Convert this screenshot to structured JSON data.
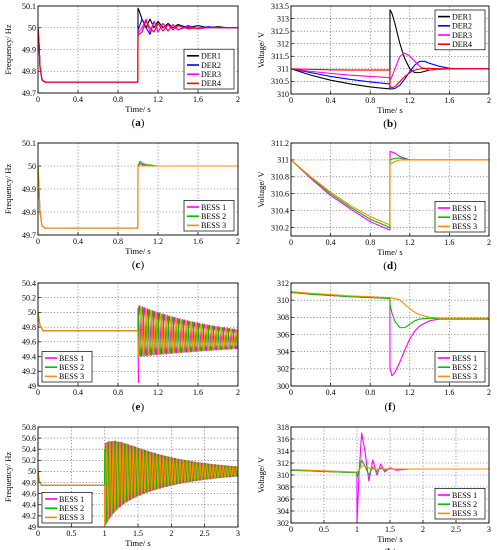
{
  "chart_data": [
    {
      "type": "line",
      "panel_label": "(a)",
      "xlabel": "Time/ s",
      "ylabel": "Frequency/ Hz",
      "xlim": [
        0,
        2
      ],
      "ylim": [
        49.7,
        50.1
      ],
      "xticks": [
        "0",
        "0.4",
        "0.8",
        "1.2",
        "1.6",
        "2"
      ],
      "yticks": [
        "49.7",
        "49.8",
        "49.9",
        "50",
        "50.1"
      ],
      "grid": true,
      "legend_position": "bottom-right",
      "x": [
        0,
        0.01,
        0.02,
        0.04,
        0.07,
        0.1,
        0.3,
        0.6,
        0.999,
        1.0,
        1.01,
        1.04,
        1.08,
        1.12,
        1.16,
        1.2,
        1.25,
        1.3,
        1.35,
        1.4,
        1.5,
        1.6,
        1.7,
        1.8,
        1.9,
        2
      ],
      "series": [
        {
          "name": "DER1",
          "color": "#000000",
          "values": [
            50.0,
            49.93,
            49.82,
            49.76,
            49.75,
            49.75,
            49.75,
            49.75,
            49.75,
            50.09,
            50.08,
            50.04,
            50.0,
            50.04,
            50.0,
            50.03,
            50.0,
            50.02,
            50.0,
            50.015,
            50.0,
            50.01,
            50.0,
            50.005,
            50.0,
            50.0
          ]
        },
        {
          "name": "DER2",
          "color": "#0000ff",
          "values": [
            50.0,
            49.93,
            49.82,
            49.76,
            49.75,
            49.75,
            49.75,
            49.75,
            49.75,
            49.99,
            50.0,
            50.04,
            50.0,
            49.97,
            50.03,
            49.98,
            50.02,
            49.985,
            50.015,
            49.99,
            50.01,
            49.995,
            50.005,
            50.0,
            50.0,
            50.0
          ]
        },
        {
          "name": "DER3",
          "color": "#ff00ff",
          "values": [
            50.0,
            49.93,
            49.82,
            49.76,
            49.75,
            49.75,
            49.75,
            49.75,
            49.75,
            49.97,
            49.98,
            50.0,
            50.04,
            49.98,
            50.03,
            49.98,
            50.02,
            49.985,
            50.015,
            49.99,
            50.005,
            49.995,
            50.0,
            50.0,
            50.0,
            50.0
          ]
        },
        {
          "name": "DER4",
          "color": "#ff0000",
          "values": [
            50.0,
            49.93,
            49.82,
            49.76,
            49.75,
            49.75,
            49.75,
            49.75,
            49.75,
            49.96,
            49.97,
            49.98,
            50.03,
            50.0,
            49.98,
            50.02,
            49.985,
            50.015,
            49.99,
            50.01,
            49.995,
            50.0,
            50.0,
            50.0,
            50.0,
            50.0
          ]
        }
      ]
    },
    {
      "type": "line",
      "panel_label": "(b)",
      "xlabel": "Time/ s",
      "ylabel": "Voltage/ V",
      "xlim": [
        0,
        2
      ],
      "ylim": [
        310,
        313.5
      ],
      "xticks": [
        "0",
        "0.4",
        "0.8",
        "1.2",
        "1.6",
        "2"
      ],
      "yticks": [
        "310",
        "310.5",
        "311",
        "311.5",
        "312",
        "312.5",
        "313",
        "313.5"
      ],
      "grid": true,
      "legend_position": "top-right",
      "x": [
        0,
        0.2,
        0.4,
        0.6,
        0.8,
        0.999,
        1.0,
        1.02,
        1.05,
        1.1,
        1.15,
        1.2,
        1.25,
        1.3,
        1.35,
        1.4,
        1.5,
        1.6,
        1.7,
        1.8,
        2
      ],
      "series": [
        {
          "name": "DER1",
          "color": "#000000",
          "values": [
            311.0,
            310.75,
            310.55,
            310.4,
            310.28,
            310.2,
            313.35,
            313.2,
            312.8,
            312.0,
            311.4,
            311.0,
            310.85,
            310.85,
            310.9,
            310.95,
            311.0,
            311.0,
            311.0,
            311.0,
            311.0
          ]
        },
        {
          "name": "DER2",
          "color": "#0000ff",
          "values": [
            311.0,
            310.85,
            310.7,
            310.58,
            310.48,
            310.4,
            310.2,
            310.2,
            310.22,
            310.35,
            310.6,
            310.9,
            311.15,
            311.3,
            311.3,
            311.22,
            311.1,
            311.02,
            311.0,
            311.0,
            311.0
          ]
        },
        {
          "name": "DER3",
          "color": "#ff00ff",
          "values": [
            311.0,
            310.9,
            310.82,
            310.75,
            310.7,
            310.65,
            310.55,
            310.7,
            311.0,
            311.5,
            311.62,
            311.5,
            311.3,
            311.1,
            311.0,
            310.95,
            310.98,
            311.0,
            311.0,
            311.0,
            311.0
          ]
        },
        {
          "name": "DER4",
          "color": "#ff0000",
          "values": [
            311.0,
            310.98,
            310.96,
            310.95,
            310.95,
            310.95,
            310.3,
            310.25,
            310.3,
            310.5,
            310.7,
            310.85,
            310.95,
            311.0,
            311.02,
            311.02,
            311.0,
            311.0,
            311.0,
            311.0,
            311.0
          ]
        }
      ]
    },
    {
      "type": "line",
      "panel_label": "(c)",
      "xlabel": "Time/ s",
      "ylabel": "Frequency/ Hz",
      "xlim": [
        0,
        2
      ],
      "ylim": [
        49.7,
        50.1
      ],
      "xticks": [
        "0",
        "0.4",
        "0.8",
        "1.2",
        "1.6",
        "2"
      ],
      "yticks": [
        "49.7",
        "49.8",
        "49.9",
        "50",
        "50.1"
      ],
      "grid": true,
      "legend_position": "bottom-right",
      "x": [
        0,
        0.01,
        0.02,
        0.04,
        0.07,
        0.1,
        0.5,
        0.999,
        1.0,
        1.02,
        1.05,
        1.1,
        1.2,
        1.3,
        1.5,
        2
      ],
      "series": [
        {
          "name": "BESS 1",
          "color": "#ff00ff",
          "values": [
            50.0,
            49.9,
            49.8,
            49.74,
            49.73,
            49.73,
            49.73,
            49.73,
            50.0,
            50.01,
            50.005,
            50.0,
            50.0,
            50.0,
            50.0,
            50.0
          ]
        },
        {
          "name": "BESS 2",
          "color": "#00c000",
          "values": [
            50.0,
            49.9,
            49.8,
            49.74,
            49.73,
            49.73,
            49.73,
            49.73,
            50.0,
            50.02,
            50.01,
            50.005,
            50.0,
            50.0,
            50.0,
            50.0
          ]
        },
        {
          "name": "BESS 3",
          "color": "#ff8c00",
          "values": [
            50.0,
            49.9,
            49.8,
            49.74,
            49.73,
            49.73,
            49.73,
            49.73,
            50.0,
            50.0,
            50.0,
            50.0,
            50.0,
            50.0,
            50.0,
            50.0
          ]
        }
      ]
    },
    {
      "type": "line",
      "panel_label": "(d)",
      "xlabel": "Time/ s",
      "ylabel": "Voltage/ V",
      "xlim": [
        0,
        2
      ],
      "ylim": [
        310.1,
        311.2
      ],
      "xticks": [
        "0",
        "0.4",
        "0.8",
        "1.2",
        "1.6",
        "2"
      ],
      "yticks": [
        "310.2",
        "310.4",
        "310.6",
        "310.8",
        "311",
        "311.2"
      ],
      "grid": true,
      "legend_position": "bottom-right",
      "x": [
        0,
        0.2,
        0.4,
        0.6,
        0.8,
        0.999,
        1.0,
        1.05,
        1.1,
        1.15,
        1.2,
        1.3,
        1.5,
        2
      ],
      "series": [
        {
          "name": "BESS 1",
          "color": "#ff00ff",
          "values": [
            311.0,
            310.78,
            310.58,
            310.42,
            310.27,
            310.17,
            311.1,
            311.08,
            311.04,
            311.02,
            311.0,
            311.0,
            311.0,
            311.0
          ]
        },
        {
          "name": "BESS 2",
          "color": "#00c000",
          "values": [
            311.0,
            310.79,
            310.6,
            310.44,
            310.3,
            310.2,
            311.0,
            311.02,
            311.02,
            311.01,
            311.0,
            311.0,
            311.0,
            311.0
          ]
        },
        {
          "name": "BESS 3",
          "color": "#ff8c00",
          "values": [
            311.0,
            310.8,
            310.62,
            310.46,
            310.33,
            310.23,
            310.95,
            310.98,
            311.0,
            311.0,
            311.0,
            311.0,
            311.0,
            311.0
          ]
        }
      ]
    },
    {
      "type": "line",
      "panel_label": "(e)",
      "xlabel": "",
      "ylabel": "",
      "xlim": [
        0,
        2
      ],
      "ylim": [
        49,
        50.4
      ],
      "xticks": [
        "0",
        "0.4",
        "0.8",
        "1.2",
        "1.6",
        "2"
      ],
      "yticks": [
        "49",
        "49.2",
        "49.4",
        "49.6",
        "49.8",
        "50",
        "50.2",
        "50.4"
      ],
      "grid": true,
      "legend_position": "bottom-left",
      "oscillation": {
        "start": 1.0,
        "freq_hz": 20,
        "decay_per_s": 1.0,
        "phase_rad": [
          0,
          2.09,
          4.19
        ],
        "center_from": 49.75,
        "center_to": 49.6,
        "center_tau_s": 0.7,
        "amplitude": 0.35
      },
      "series": [
        {
          "name": "BESS 1",
          "color": "#ff00ff",
          "values_until_event": [
            50.0,
            49.75
          ],
          "event_dip": 49.05
        },
        {
          "name": "BESS 2",
          "color": "#00c000",
          "values_until_event": [
            50.0,
            49.75
          ]
        },
        {
          "name": "BESS 3",
          "color": "#ff8c00",
          "values_until_event": [
            50.0,
            49.75
          ]
        }
      ]
    },
    {
      "type": "line",
      "panel_label": "(f)",
      "xlabel": "",
      "ylabel": "",
      "xlim": [
        0,
        2
      ],
      "ylim": [
        300,
        312
      ],
      "xticks": [
        "0",
        "0.4",
        "0.8",
        "1.2",
        "1.6",
        "2"
      ],
      "yticks": [
        "300",
        "302",
        "304",
        "306",
        "308",
        "310",
        "312"
      ],
      "grid": true,
      "legend_position": "bottom-right",
      "x": [
        0,
        0.2,
        0.4,
        0.6,
        0.8,
        0.999,
        1.0,
        1.02,
        1.05,
        1.1,
        1.15,
        1.2,
        1.25,
        1.3,
        1.4,
        1.5,
        1.6,
        1.8,
        2
      ],
      "series": [
        {
          "name": "BESS 1",
          "color": "#ff00ff",
          "values": [
            310.9,
            310.7,
            310.55,
            310.4,
            310.3,
            310.2,
            302.0,
            301.2,
            301.6,
            302.8,
            304.2,
            305.5,
            306.4,
            307.0,
            307.6,
            307.8,
            307.8,
            307.8,
            307.8
          ]
        },
        {
          "name": "BESS 2",
          "color": "#00c000",
          "values": [
            310.9,
            310.7,
            310.55,
            310.4,
            310.3,
            310.2,
            309.5,
            308.5,
            307.5,
            306.8,
            306.8,
            307.2,
            307.6,
            307.8,
            307.9,
            307.8,
            307.8,
            307.8,
            307.8
          ]
        },
        {
          "name": "BESS 3",
          "color": "#ff8c00",
          "values": [
            311.0,
            310.8,
            310.65,
            310.5,
            310.4,
            310.3,
            310.3,
            310.25,
            310.2,
            310.0,
            309.5,
            309.0,
            308.6,
            308.3,
            308.0,
            307.9,
            307.9,
            307.9,
            307.9
          ]
        }
      ]
    },
    {
      "type": "line",
      "panel_label": "(g)",
      "xlabel": "Time/ s",
      "ylabel": "Frequency/ Hz",
      "xlim": [
        0,
        3
      ],
      "ylim": [
        49,
        50.8
      ],
      "xticks": [
        "0",
        "0.5",
        "1",
        "1.5",
        "2",
        "2.5",
        "3"
      ],
      "yticks": [
        "49",
        "49.2",
        "49.4",
        "49.6",
        "49.8",
        "50",
        "50.2",
        "50.4",
        "50.6",
        "50.8"
      ],
      "grid": true,
      "legend_position": "bottom-left",
      "oscillation": {
        "start": 1.0,
        "freq_hz": 20,
        "decay_per_s": 1.1,
        "phase_rad": [
          0,
          2.09,
          4.19
        ],
        "center_from": 49.75,
        "center_to": 50.0,
        "center_tau_s": 0.15,
        "amplitude": 0.75
      },
      "series": [
        {
          "name": "BESS 1",
          "color": "#ff00ff",
          "values_until_event": [
            50.0,
            49.75
          ],
          "event_dip": 49.1
        },
        {
          "name": "BESS 2",
          "color": "#00c000",
          "values_until_event": [
            50.0,
            49.75
          ]
        },
        {
          "name": "BESS 3",
          "color": "#ff8c00",
          "values_until_event": [
            50.0,
            49.75
          ]
        }
      ]
    },
    {
      "type": "line",
      "panel_label": "(h)",
      "xlabel": "Time/ s",
      "ylabel": "Voltage/ V",
      "xlim": [
        0,
        3
      ],
      "ylim": [
        302,
        318
      ],
      "xticks": [
        "0",
        "0.5",
        "1",
        "1.5",
        "2",
        "2.5",
        "3"
      ],
      "yticks": [
        "302",
        "304",
        "306",
        "308",
        "310",
        "312",
        "314",
        "316",
        "318"
      ],
      "grid": true,
      "legend_position": "bottom-right",
      "x": [
        0,
        0.5,
        0.999,
        1.0,
        1.03,
        1.07,
        1.12,
        1.18,
        1.24,
        1.3,
        1.36,
        1.42,
        1.5,
        1.6,
        1.8,
        2,
        2.5,
        3
      ],
      "series": [
        {
          "name": "BESS 1",
          "color": "#ff00ff",
          "values": [
            310.8,
            310.6,
            310.4,
            302.0,
            310.0,
            317.0,
            314.0,
            309.0,
            312.5,
            310.0,
            311.8,
            310.5,
            311.2,
            310.8,
            311.0,
            311.0,
            311.0,
            311.0
          ]
        },
        {
          "name": "BESS 2",
          "color": "#00c000",
          "values": [
            310.8,
            310.6,
            310.4,
            309.5,
            310.8,
            312.5,
            311.5,
            310.0,
            311.3,
            310.6,
            311.2,
            310.8,
            311.0,
            311.0,
            311.0,
            311.0,
            311.0,
            311.0
          ]
        },
        {
          "name": "BESS 3",
          "color": "#ff8c00",
          "values": [
            310.9,
            310.7,
            310.5,
            310.5,
            310.8,
            311.5,
            311.5,
            311.2,
            311.0,
            311.0,
            311.0,
            311.0,
            311.0,
            311.0,
            311.0,
            311.0,
            311.0,
            311.0
          ]
        }
      ]
    }
  ]
}
